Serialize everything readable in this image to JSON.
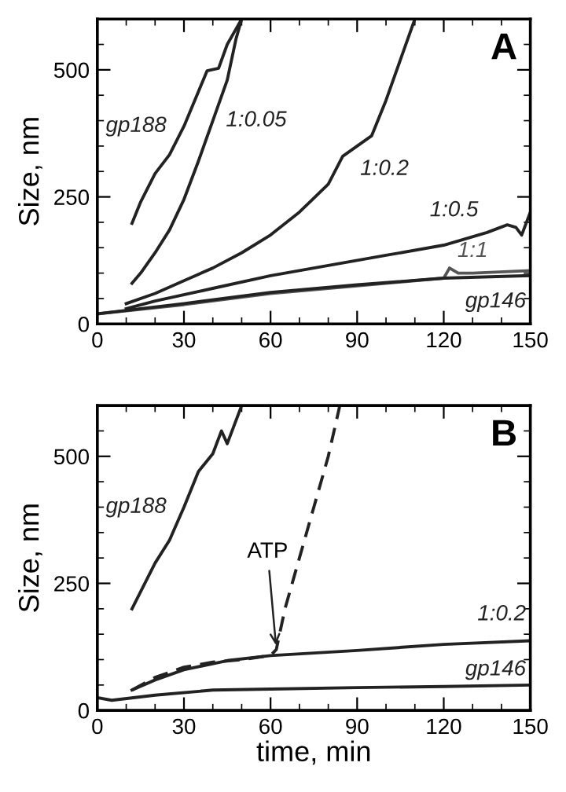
{
  "chart_data": [
    {
      "type": "line",
      "title": "A",
      "ylabel": "Size, nm",
      "xlim": [
        0,
        150
      ],
      "ylim": [
        0,
        600
      ],
      "xticks": [
        0,
        {
          "value": 10,
          "label": null
        },
        {
          "value": 20,
          "label": null
        },
        30,
        {
          "value": 40,
          "label": null
        },
        {
          "value": 50,
          "label": null
        },
        60,
        {
          "value": 70,
          "label": null
        },
        {
          "value": 80,
          "label": null
        },
        90,
        {
          "value": 100,
          "label": null
        },
        {
          "value": 110,
          "label": null
        },
        120,
        {
          "value": 130,
          "label": null
        },
        {
          "value": 140,
          "label": null
        },
        150
      ],
      "yticks": [
        0,
        {
          "value": 50,
          "label": null
        },
        {
          "value": 100,
          "label": null
        },
        {
          "value": 150,
          "label": null
        },
        {
          "value": 200,
          "label": null
        },
        250,
        {
          "value": 300,
          "label": null
        },
        {
          "value": 350,
          "label": null
        },
        {
          "value": 400,
          "label": null
        },
        {
          "value": 450,
          "label": null
        },
        500,
        {
          "value": 550,
          "label": null
        }
      ],
      "grid": false,
      "marker": "none",
      "series": [
        {
          "name": "gp188",
          "color": "#222222",
          "x": [
            12,
            15,
            20,
            25,
            30,
            35,
            38,
            42,
            45,
            48,
            50
          ],
          "values": [
            198,
            240,
            296,
            333,
            389,
            457,
            498,
            503,
            550,
            580,
            600
          ]
        },
        {
          "name": "1:0.05",
          "color": "#222222",
          "x": [
            12,
            15,
            20,
            25,
            30,
            35,
            40,
            45,
            48,
            50
          ],
          "values": [
            80,
            100,
            140,
            185,
            245,
            320,
            400,
            480,
            560,
            600
          ]
        },
        {
          "name": "1:0.2",
          "color": "#222222",
          "x": [
            10,
            20,
            30,
            40,
            50,
            60,
            70,
            80,
            85,
            90,
            95,
            100,
            105,
            110
          ],
          "values": [
            40,
            60,
            85,
            110,
            140,
            175,
            220,
            275,
            330,
            350,
            370,
            440,
            520,
            600
          ]
        },
        {
          "name": "1:0.5",
          "color": "#222222",
          "x": [
            10,
            20,
            40,
            60,
            80,
            100,
            120,
            135,
            142,
            145,
            147,
            150
          ],
          "values": [
            30,
            45,
            70,
            95,
            115,
            135,
            155,
            180,
            195,
            190,
            175,
            220
          ]
        },
        {
          "name": "1:1",
          "color": "#555555",
          "x": [
            0,
            30,
            60,
            90,
            120,
            122,
            125,
            130,
            150
          ],
          "values": [
            20,
            38,
            60,
            75,
            90,
            110,
            100,
            100,
            105
          ]
        },
        {
          "name": "gp146",
          "color": "#222222",
          "x": [
            0,
            30,
            60,
            90,
            120,
            150
          ],
          "values": [
            20,
            40,
            62,
            77,
            90,
            95
          ]
        }
      ]
    },
    {
      "type": "line",
      "title": "B",
      "xlabel": "time, min",
      "ylabel": "Size, nm",
      "xlim": [
        0,
        150
      ],
      "ylim": [
        0,
        600
      ],
      "xticks": [
        0,
        {
          "value": 10,
          "label": null
        },
        {
          "value": 20,
          "label": null
        },
        30,
        {
          "value": 40,
          "label": null
        },
        {
          "value": 50,
          "label": null
        },
        60,
        {
          "value": 70,
          "label": null
        },
        {
          "value": 80,
          "label": null
        },
        90,
        {
          "value": 100,
          "label": null
        },
        {
          "value": 110,
          "label": null
        },
        120,
        {
          "value": 130,
          "label": null
        },
        {
          "value": 140,
          "label": null
        },
        150
      ],
      "yticks": [
        0,
        {
          "value": 50,
          "label": null
        },
        {
          "value": 100,
          "label": null
        },
        {
          "value": 150,
          "label": null
        },
        {
          "value": 200,
          "label": null
        },
        250,
        {
          "value": 300,
          "label": null
        },
        {
          "value": 350,
          "label": null
        },
        {
          "value": 400,
          "label": null
        },
        {
          "value": 450,
          "label": null
        },
        500,
        {
          "value": 550,
          "label": null
        }
      ],
      "grid": false,
      "marker": "none",
      "series": [
        {
          "name": "gp188",
          "color": "#222222",
          "x": [
            12,
            20,
            25,
            30,
            35,
            40,
            43,
            45,
            50
          ],
          "values": [
            200,
            290,
            335,
            400,
            470,
            505,
            550,
            525,
            600
          ]
        },
        {
          "color": "#222222",
          "line_style": "dashed",
          "x": [
            12,
            20,
            30,
            40,
            50,
            60,
            62,
            65,
            70,
            75,
            80,
            84
          ],
          "values": [
            40,
            65,
            85,
            95,
            100,
            108,
            120,
            200,
            300,
            400,
            500,
            600
          ]
        },
        {
          "name": "1:0.2",
          "color": "#222222",
          "x": [
            12,
            20,
            30,
            45,
            60,
            90,
            120,
            150
          ],
          "values": [
            40,
            60,
            80,
            98,
            108,
            118,
            130,
            137
          ]
        },
        {
          "name": "gp146",
          "color": "#222222",
          "x": [
            0,
            5,
            20,
            40,
            60,
            90,
            120,
            150
          ],
          "values": [
            25,
            20,
            30,
            40,
            42,
            45,
            47,
            50
          ]
        }
      ],
      "annotations": [
        {
          "text": "ATP",
          "x": 62,
          "y": 120
        }
      ]
    }
  ]
}
